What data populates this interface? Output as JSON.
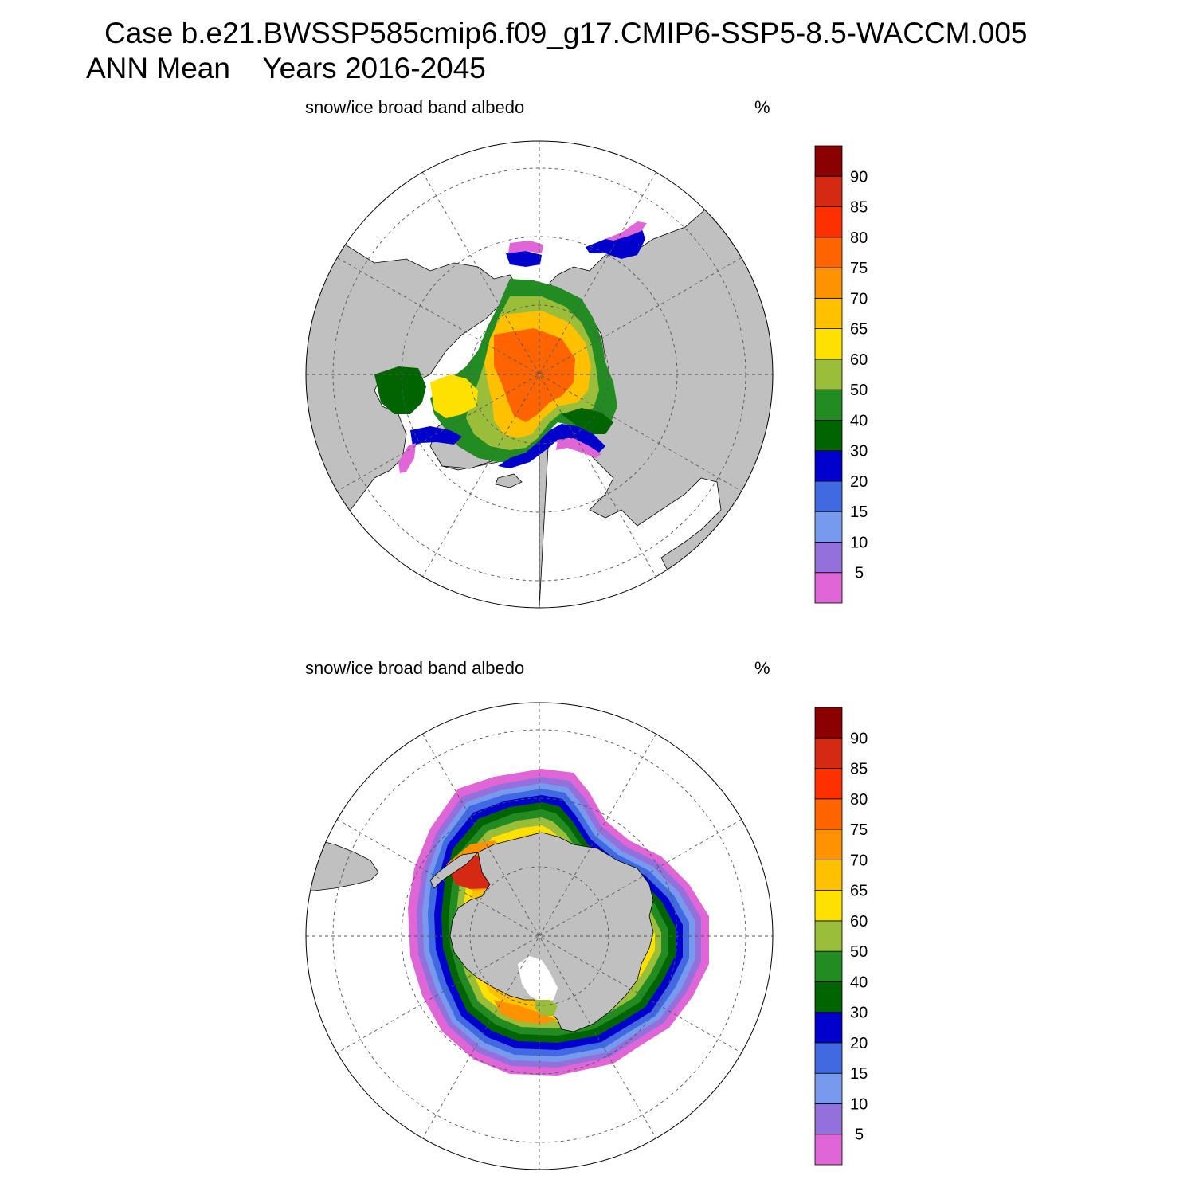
{
  "header": {
    "case_line": "Case b.e21.BWSSP585cmip6.f09_g17.CMIP6-SSP5-8.5-WACCM.005",
    "period_line": "ANN Mean    Years 2016-2045"
  },
  "panels": [
    {
      "id": "north",
      "hemisphere": "Northern Hemisphere (polar stereographic)",
      "variable": "snow/ice broad band albedo",
      "units": "%"
    },
    {
      "id": "south",
      "hemisphere": "Southern Hemisphere (polar stereographic)",
      "variable": "snow/ice broad band albedo",
      "units": "%"
    }
  ],
  "colorbar": {
    "levels": [
      "5",
      "10",
      "15",
      "20",
      "30",
      "40",
      "50",
      "60",
      "65",
      "70",
      "75",
      "80",
      "85",
      "90"
    ],
    "colors": [
      "#e066d8",
      "#9370db",
      "#7799ee",
      "#4169e1",
      "#0000cd",
      "#006400",
      "#228b22",
      "#9abd3a",
      "#ffe100",
      "#ffc000",
      "#ff9200",
      "#ff6400",
      "#ff3000",
      "#d42a14",
      "#8b0000"
    ]
  },
  "colors": {
    "land": "#c0c0c0",
    "ocean": "#ffffff",
    "gridline": "#555555"
  }
}
